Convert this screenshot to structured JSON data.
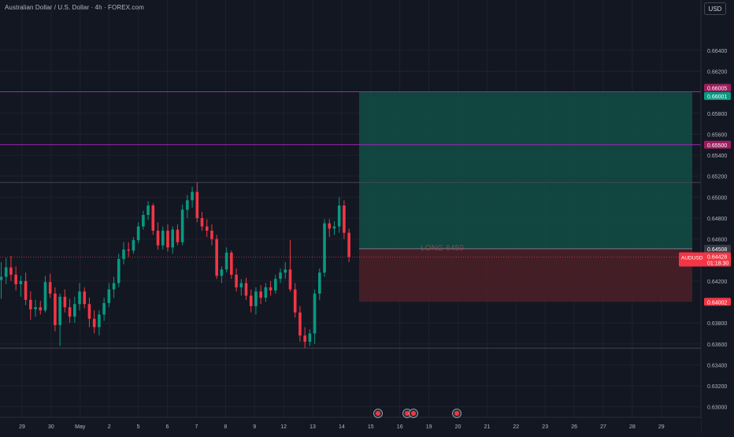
{
  "header": {
    "symbol_title": "Australian Dollar / U.S. Dollar · 4h · FOREX.com",
    "currency_button": "USD"
  },
  "position": {
    "label": "LONG 6450"
  },
  "colors": {
    "background": "#131722",
    "up": "#089981",
    "down": "#f23645",
    "grid": "#1e222d",
    "level_line": "#9c27b0",
    "target_zone": "#124d44",
    "stop_zone": "#4a1f27"
  },
  "chart_data": {
    "type": "candlestick",
    "symbol": "AUDUSD",
    "timeframe": "4h",
    "ylim": [
      0.629,
      0.6688
    ],
    "y_ticks": [
      "0.66400",
      "0.66200",
      "0.65800",
      "0.65600",
      "0.65400",
      "0.65200",
      "0.65000",
      "0.64800",
      "0.64600",
      "0.64200",
      "0.63800",
      "0.63600",
      "0.63400",
      "0.63200",
      "0.63000"
    ],
    "x_ticks": [
      "29",
      "30",
      "May",
      "2",
      "5",
      "6",
      "7",
      "8",
      "9",
      "12",
      "13",
      "14",
      "15",
      "16",
      "19",
      "20",
      "21",
      "22",
      "23",
      "26",
      "27",
      "28",
      "29"
    ],
    "price_labels": [
      {
        "text": "0.66005",
        "value": 0.66005,
        "color": "#9c1e5e"
      },
      {
        "text": "0.66001",
        "value": 0.66001,
        "color": "#089981"
      },
      {
        "text": "0.65500",
        "value": 0.655,
        "color": "#9c1e5e"
      },
      {
        "text": "0.64508",
        "value": 0.64508,
        "color": "#363a45"
      },
      {
        "text": "0.64002",
        "value": 0.64002,
        "color": "#f23645"
      }
    ],
    "current_price": {
      "symbol": "AUDUSD",
      "price": "0.64428",
      "countdown": "01:18:30",
      "value": 0.64428
    },
    "levels": [
      {
        "value": 0.66005,
        "color": "#9c27b0"
      },
      {
        "value": 0.655,
        "color": "#9c27b0"
      },
      {
        "value": 0.6514,
        "color": "#434651"
      },
      {
        "value": 0.6356,
        "color": "#434651"
      }
    ],
    "long_position": {
      "entry": 0.64508,
      "target": 0.66001,
      "stop": 0.64002
    },
    "candles": [
      {
        "o": 0.6421,
        "h": 0.6438,
        "l": 0.6403,
        "c": 0.6424
      },
      {
        "o": 0.6424,
        "h": 0.6442,
        "l": 0.6417,
        "c": 0.6433
      },
      {
        "o": 0.6433,
        "h": 0.6444,
        "l": 0.642,
        "c": 0.6426
      },
      {
        "o": 0.6426,
        "h": 0.6434,
        "l": 0.6411,
        "c": 0.6417
      },
      {
        "o": 0.6417,
        "h": 0.6425,
        "l": 0.6405,
        "c": 0.642
      },
      {
        "o": 0.642,
        "h": 0.6428,
        "l": 0.6397,
        "c": 0.6402
      },
      {
        "o": 0.6402,
        "h": 0.641,
        "l": 0.6383,
        "c": 0.6393
      },
      {
        "o": 0.6393,
        "h": 0.6402,
        "l": 0.6386,
        "c": 0.6395
      },
      {
        "o": 0.6395,
        "h": 0.6401,
        "l": 0.6388,
        "c": 0.6392
      },
      {
        "o": 0.6392,
        "h": 0.6425,
        "l": 0.639,
        "c": 0.6419
      },
      {
        "o": 0.6419,
        "h": 0.6427,
        "l": 0.6404,
        "c": 0.6408
      },
      {
        "o": 0.6408,
        "h": 0.6414,
        "l": 0.6372,
        "c": 0.6378
      },
      {
        "o": 0.6378,
        "h": 0.6408,
        "l": 0.6358,
        "c": 0.6405
      },
      {
        "o": 0.6405,
        "h": 0.6412,
        "l": 0.639,
        "c": 0.6395
      },
      {
        "o": 0.6395,
        "h": 0.6403,
        "l": 0.638,
        "c": 0.6386
      },
      {
        "o": 0.6386,
        "h": 0.6405,
        "l": 0.638,
        "c": 0.6398
      },
      {
        "o": 0.6398,
        "h": 0.6418,
        "l": 0.6392,
        "c": 0.641
      },
      {
        "o": 0.641,
        "h": 0.6414,
        "l": 0.6394,
        "c": 0.6398
      },
      {
        "o": 0.6398,
        "h": 0.6404,
        "l": 0.6376,
        "c": 0.6384
      },
      {
        "o": 0.6384,
        "h": 0.6392,
        "l": 0.637,
        "c": 0.6376
      },
      {
        "o": 0.6376,
        "h": 0.6392,
        "l": 0.6368,
        "c": 0.6388
      },
      {
        "o": 0.6388,
        "h": 0.6404,
        "l": 0.6382,
        "c": 0.6399
      },
      {
        "o": 0.6399,
        "h": 0.6418,
        "l": 0.6395,
        "c": 0.6412
      },
      {
        "o": 0.6412,
        "h": 0.6424,
        "l": 0.6404,
        "c": 0.6418
      },
      {
        "o": 0.6418,
        "h": 0.6446,
        "l": 0.6414,
        "c": 0.6441
      },
      {
        "o": 0.6441,
        "h": 0.6457,
        "l": 0.6436,
        "c": 0.645
      },
      {
        "o": 0.645,
        "h": 0.6457,
        "l": 0.6443,
        "c": 0.6449
      },
      {
        "o": 0.6449,
        "h": 0.6462,
        "l": 0.6446,
        "c": 0.6459
      },
      {
        "o": 0.6459,
        "h": 0.6476,
        "l": 0.6456,
        "c": 0.6472
      },
      {
        "o": 0.6472,
        "h": 0.6487,
        "l": 0.6469,
        "c": 0.6483
      },
      {
        "o": 0.6483,
        "h": 0.6496,
        "l": 0.6478,
        "c": 0.6492
      },
      {
        "o": 0.6492,
        "h": 0.6494,
        "l": 0.6464,
        "c": 0.6468
      },
      {
        "o": 0.6468,
        "h": 0.6476,
        "l": 0.645,
        "c": 0.6454
      },
      {
        "o": 0.6454,
        "h": 0.6472,
        "l": 0.645,
        "c": 0.6468
      },
      {
        "o": 0.6468,
        "h": 0.6474,
        "l": 0.6448,
        "c": 0.6452
      },
      {
        "o": 0.6452,
        "h": 0.6472,
        "l": 0.6446,
        "c": 0.6469
      },
      {
        "o": 0.6469,
        "h": 0.6474,
        "l": 0.6454,
        "c": 0.6457
      },
      {
        "o": 0.6457,
        "h": 0.6493,
        "l": 0.6454,
        "c": 0.6488
      },
      {
        "o": 0.6488,
        "h": 0.6502,
        "l": 0.648,
        "c": 0.6497
      },
      {
        "o": 0.6497,
        "h": 0.651,
        "l": 0.649,
        "c": 0.6505
      },
      {
        "o": 0.6505,
        "h": 0.6514,
        "l": 0.6476,
        "c": 0.648
      },
      {
        "o": 0.648,
        "h": 0.6486,
        "l": 0.6468,
        "c": 0.6472
      },
      {
        "o": 0.6472,
        "h": 0.6479,
        "l": 0.6462,
        "c": 0.6468
      },
      {
        "o": 0.6468,
        "h": 0.6474,
        "l": 0.6454,
        "c": 0.646
      },
      {
        "o": 0.646,
        "h": 0.6464,
        "l": 0.6422,
        "c": 0.6425
      },
      {
        "o": 0.6425,
        "h": 0.6434,
        "l": 0.6418,
        "c": 0.6431
      },
      {
        "o": 0.6431,
        "h": 0.6452,
        "l": 0.6428,
        "c": 0.6447
      },
      {
        "o": 0.6447,
        "h": 0.6449,
        "l": 0.6422,
        "c": 0.6426
      },
      {
        "o": 0.6426,
        "h": 0.6432,
        "l": 0.641,
        "c": 0.6414
      },
      {
        "o": 0.6414,
        "h": 0.6422,
        "l": 0.6406,
        "c": 0.6418
      },
      {
        "o": 0.6418,
        "h": 0.6423,
        "l": 0.6402,
        "c": 0.6406
      },
      {
        "o": 0.6406,
        "h": 0.6412,
        "l": 0.639,
        "c": 0.6396
      },
      {
        "o": 0.6396,
        "h": 0.6414,
        "l": 0.6388,
        "c": 0.641
      },
      {
        "o": 0.641,
        "h": 0.6416,
        "l": 0.6398,
        "c": 0.6404
      },
      {
        "o": 0.6404,
        "h": 0.6418,
        "l": 0.64,
        "c": 0.6414
      },
      {
        "o": 0.6414,
        "h": 0.642,
        "l": 0.6406,
        "c": 0.6411
      },
      {
        "o": 0.6411,
        "h": 0.6426,
        "l": 0.6408,
        "c": 0.6422
      },
      {
        "o": 0.6422,
        "h": 0.6432,
        "l": 0.6418,
        "c": 0.6428
      },
      {
        "o": 0.6428,
        "h": 0.6438,
        "l": 0.6422,
        "c": 0.6431
      },
      {
        "o": 0.6431,
        "h": 0.6459,
        "l": 0.641,
        "c": 0.6412
      },
      {
        "o": 0.6412,
        "h": 0.6418,
        "l": 0.6385,
        "c": 0.639
      },
      {
        "o": 0.639,
        "h": 0.6396,
        "l": 0.6362,
        "c": 0.6368
      },
      {
        "o": 0.6368,
        "h": 0.6376,
        "l": 0.6356,
        "c": 0.6362
      },
      {
        "o": 0.6362,
        "h": 0.6374,
        "l": 0.6358,
        "c": 0.637
      },
      {
        "o": 0.637,
        "h": 0.6412,
        "l": 0.636,
        "c": 0.6408
      },
      {
        "o": 0.6408,
        "h": 0.6432,
        "l": 0.6402,
        "c": 0.6428
      },
      {
        "o": 0.6428,
        "h": 0.6479,
        "l": 0.6424,
        "c": 0.6475
      },
      {
        "o": 0.6475,
        "h": 0.6479,
        "l": 0.6462,
        "c": 0.647
      },
      {
        "o": 0.647,
        "h": 0.6477,
        "l": 0.6464,
        "c": 0.6472
      },
      {
        "o": 0.6472,
        "h": 0.65,
        "l": 0.6466,
        "c": 0.6492
      },
      {
        "o": 0.6492,
        "h": 0.6497,
        "l": 0.646,
        "c": 0.6466
      },
      {
        "o": 0.6466,
        "h": 0.647,
        "l": 0.6438,
        "c": 0.6443
      }
    ]
  }
}
